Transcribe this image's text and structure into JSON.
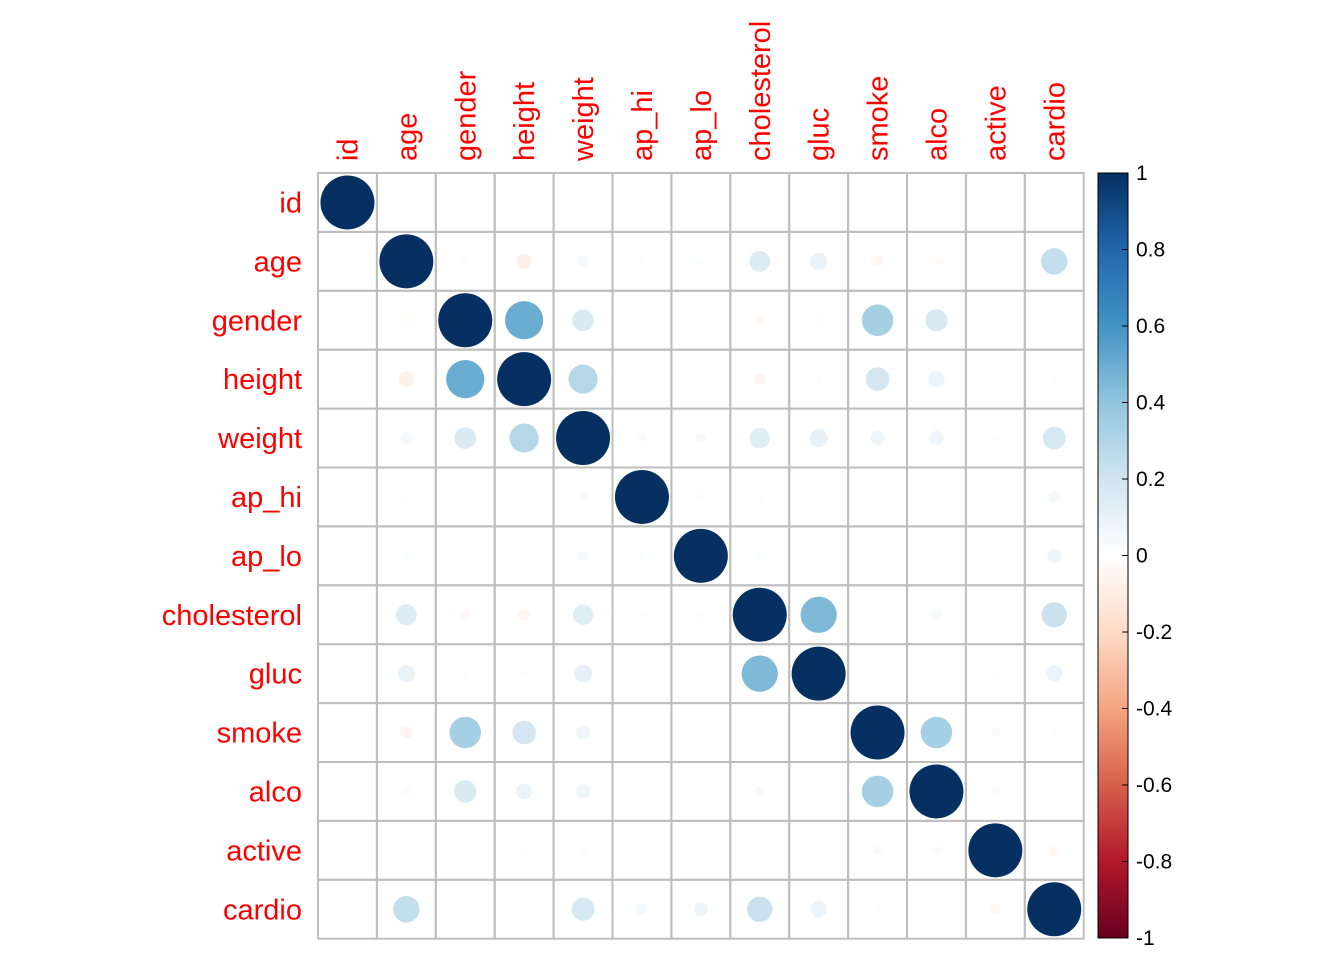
{
  "chart_data": {
    "type": "heatmap",
    "style": "correlation-circles",
    "variables": [
      "id",
      "age",
      "gender",
      "height",
      "weight",
      "ap_hi",
      "ap_lo",
      "cholesterol",
      "gluc",
      "smoke",
      "alco",
      "active",
      "cardio"
    ],
    "label_color": "#FF0000",
    "matrix": [
      [
        1.0,
        0.0,
        0.0,
        0.0,
        0.0,
        0.0,
        0.0,
        0.0,
        0.0,
        0.0,
        0.0,
        0.0,
        0.0
      ],
      [
        0.0,
        1.0,
        -0.02,
        -0.08,
        0.05,
        0.02,
        0.02,
        0.15,
        0.1,
        -0.05,
        -0.03,
        0.0,
        0.24
      ],
      [
        0.0,
        -0.02,
        1.0,
        0.5,
        0.16,
        0.01,
        0.01,
        -0.04,
        0.02,
        0.34,
        0.17,
        0.01,
        0.01
      ],
      [
        0.0,
        -0.08,
        0.5,
        1.0,
        0.29,
        0.01,
        0.01,
        -0.05,
        -0.02,
        0.19,
        0.09,
        -0.01,
        -0.01
      ],
      [
        0.0,
        0.05,
        0.16,
        0.29,
        1.0,
        0.03,
        0.04,
        0.14,
        0.11,
        0.07,
        0.07,
        -0.02,
        0.18
      ],
      [
        0.0,
        0.02,
        0.01,
        0.01,
        0.03,
        1.0,
        0.02,
        0.02,
        0.01,
        0.0,
        0.0,
        0.0,
        0.05
      ],
      [
        0.0,
        0.02,
        0.01,
        0.01,
        0.04,
        0.02,
        1.0,
        0.02,
        0.01,
        0.0,
        0.01,
        0.0,
        0.07
      ],
      [
        0.0,
        0.15,
        -0.04,
        -0.05,
        0.14,
        0.02,
        0.02,
        1.0,
        0.45,
        0.01,
        0.04,
        0.01,
        0.22
      ],
      [
        0.0,
        0.1,
        0.02,
        -0.02,
        0.11,
        0.01,
        0.01,
        0.45,
        1.0,
        -0.01,
        0.01,
        -0.01,
        0.09
      ],
      [
        0.0,
        -0.05,
        0.34,
        0.19,
        0.07,
        0.0,
        0.0,
        0.01,
        -0.01,
        1.0,
        0.34,
        0.03,
        -0.02
      ],
      [
        0.0,
        -0.03,
        0.17,
        0.09,
        0.07,
        0.0,
        0.01,
        0.04,
        0.01,
        0.34,
        1.0,
        0.03,
        -0.01
      ],
      [
        0.0,
        0.0,
        0.01,
        -0.01,
        -0.02,
        0.0,
        0.0,
        0.01,
        -0.01,
        0.03,
        0.03,
        1.0,
        -0.04
      ],
      [
        0.0,
        0.24,
        0.01,
        -0.01,
        0.18,
        0.05,
        0.07,
        0.22,
        0.09,
        -0.02,
        -0.01,
        -0.04,
        1.0
      ]
    ],
    "colorbar": {
      "range": [
        -1,
        1
      ],
      "ticks": [
        "1",
        "0.8",
        "0.6",
        "0.4",
        "0.2",
        "0",
        "-0.2",
        "-0.4",
        "-0.6",
        "-0.8",
        "-1"
      ],
      "tick_values": [
        1,
        0.8,
        0.6,
        0.4,
        0.2,
        0,
        -0.2,
        -0.4,
        -0.6,
        -0.8,
        -1
      ],
      "colors": [
        "#67001F",
        "#B2182B",
        "#D6604D",
        "#F4A582",
        "#FDDBC7",
        "#FFFFFF",
        "#D1E5F0",
        "#92C5DE",
        "#4393C3",
        "#2166AC",
        "#053061"
      ]
    },
    "grid_color": "#BEBEBE"
  }
}
